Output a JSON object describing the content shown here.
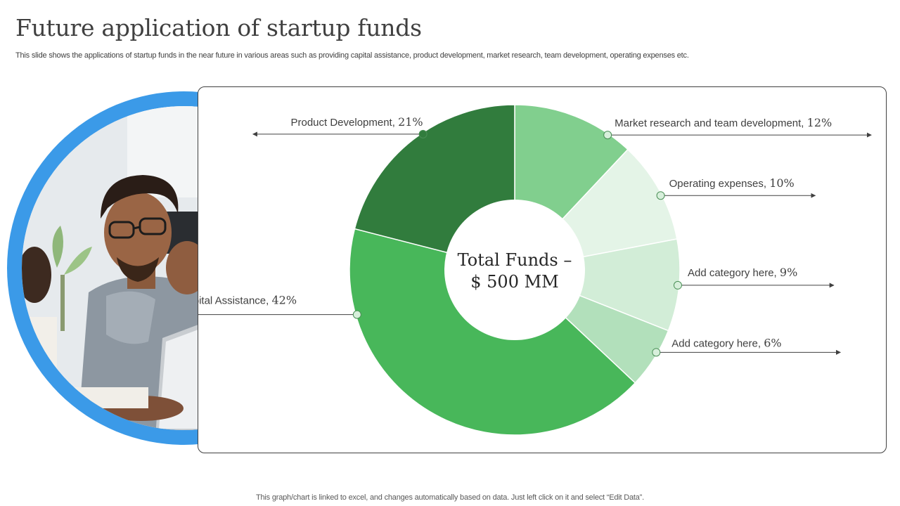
{
  "title": "Future application of startup funds",
  "subtitle": "This slide shows the applications of startup funds in the near future in various areas such as providing capital assistance, product development, market research, team development, operating expenses etc.",
  "footer": "This graph/chart is linked to excel,  and changes automatically based on data. Just left click on it and select “Edit Data”.",
  "chart_data": {
    "type": "pie",
    "variant": "donut",
    "center_label": [
      "Total Funds –",
      "$ 500 MM"
    ],
    "slices": [
      {
        "label": "Market research and team development,",
        "pct": "12%",
        "value": 12,
        "color": "#81cf8e"
      },
      {
        "label": "Operating expenses,",
        "pct": "10%",
        "value": 10,
        "color": "#e4f4e7"
      },
      {
        "label": "Add category here,",
        "pct": "9%",
        "value": 9,
        "color": "#d2edd7"
      },
      {
        "label": "Add category here,",
        "pct": "6%",
        "value": 6,
        "color": "#b2e0bb"
      },
      {
        "label": "Providing Capital Assistance,",
        "pct": "42%",
        "value": 42,
        "color": "#48b75a"
      },
      {
        "label": "Product Development,",
        "pct": "21%",
        "value": 21,
        "color": "#317c3d"
      }
    ]
  }
}
